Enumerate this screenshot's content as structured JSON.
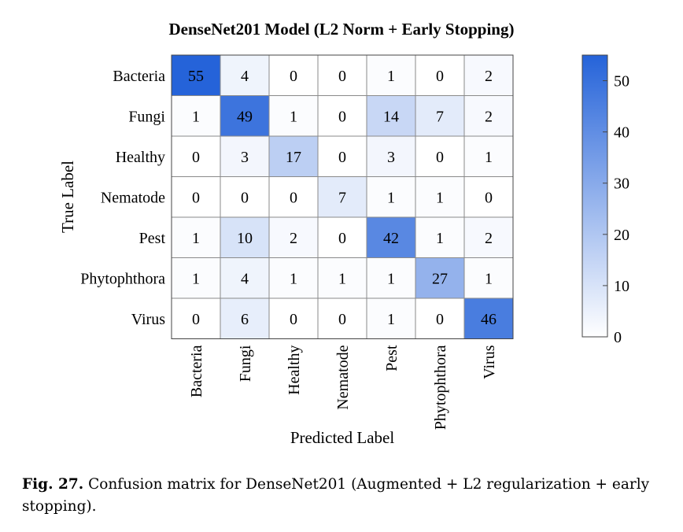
{
  "chart_data": {
    "type": "heatmap",
    "title": "DenseNet201 Model (L2 Norm + Early Stopping)",
    "xlabel": "Predicted Label",
    "ylabel": "True Label",
    "x_categories": [
      "Bacteria",
      "Fungi",
      "Healthy",
      "Nematode",
      "Pest",
      "Phytophthora",
      "Virus"
    ],
    "y_categories": [
      "Bacteria",
      "Fungi",
      "Healthy",
      "Nematode",
      "Pest",
      "Phytophthora",
      "Virus"
    ],
    "values": [
      [
        55,
        4,
        0,
        0,
        1,
        0,
        2
      ],
      [
        1,
        49,
        1,
        0,
        14,
        7,
        2
      ],
      [
        0,
        3,
        17,
        0,
        3,
        0,
        1
      ],
      [
        0,
        0,
        0,
        7,
        1,
        1,
        0
      ],
      [
        1,
        10,
        2,
        0,
        42,
        1,
        2
      ],
      [
        1,
        4,
        1,
        1,
        1,
        27,
        1
      ],
      [
        0,
        6,
        0,
        0,
        1,
        0,
        46
      ]
    ],
    "colorbar": {
      "min": 0,
      "max": 55,
      "ticks": [
        0,
        10,
        20,
        30,
        40,
        50
      ]
    },
    "colors": {
      "low": "#ffffff",
      "high": "#2563d9"
    }
  },
  "caption": {
    "label": "Fig. 27.",
    "text": "Confusion matrix for DenseNet201 (Augmented + L2 regularization + early stopping)."
  }
}
